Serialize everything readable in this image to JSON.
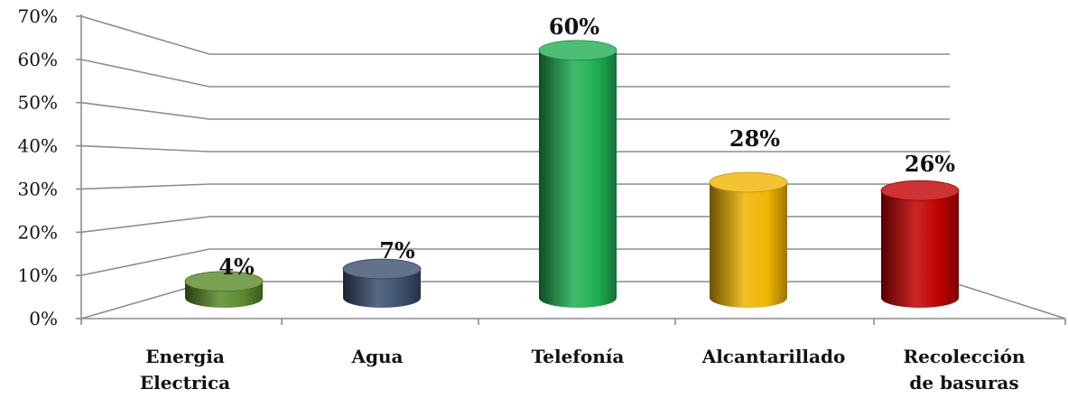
{
  "chart_data": {
    "type": "bar",
    "categories": [
      [
        "Energia",
        "Electrica"
      ],
      [
        "Agua"
      ],
      [
        "Telefonía"
      ],
      [
        "Alcantarillado"
      ],
      [
        "Recolección",
        "de basuras"
      ]
    ],
    "values": [
      4,
      7,
      60,
      28,
      26
    ],
    "data_labels": [
      "4%",
      "7%",
      "60%",
      "28%",
      "26%"
    ],
    "y_ticks": [
      "0%",
      "10%",
      "20%",
      "30%",
      "40%",
      "50%",
      "60%",
      "70%"
    ],
    "ylim": [
      0,
      70
    ],
    "grid": true,
    "colors": [
      "#5a8a2a",
      "#3b4f6e",
      "#1fae52",
      "#f0b400",
      "#c00000"
    ],
    "title": "",
    "xlabel": "",
    "ylabel": ""
  }
}
